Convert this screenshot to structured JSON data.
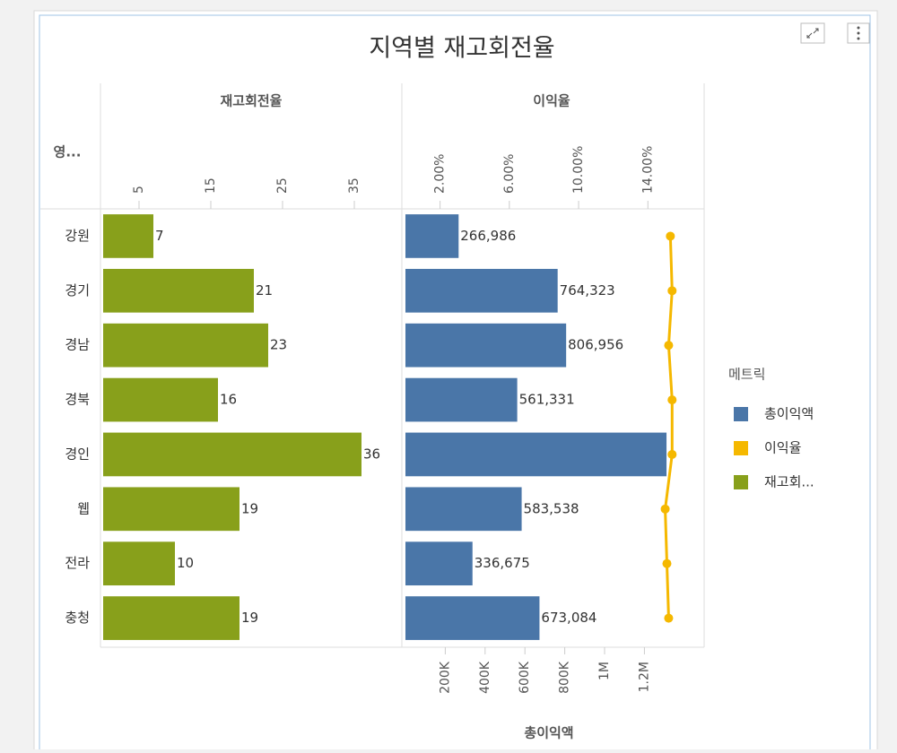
{
  "chart_data": {
    "type": "bar",
    "title": "지역별 재고회전율",
    "row_header": "영...",
    "legend_title": "메트릭",
    "legend_position": "right",
    "categories": [
      "강원",
      "경기",
      "경남",
      "경북",
      "경인",
      "웹",
      "전라",
      "충청"
    ],
    "turnover_axis": {
      "title": "재고회전율",
      "xlim": [
        0,
        41.5
      ],
      "xticks": [
        5,
        15,
        25,
        35
      ]
    },
    "margin_axis": {
      "title": "이익율",
      "xlim": [
        0,
        17.25
      ],
      "xticks": [
        {
          "value": 2,
          "label": "2.00%"
        },
        {
          "value": 6,
          "label": "6.00%"
        },
        {
          "value": 10,
          "label": "10.00%"
        },
        {
          "value": 14,
          "label": "14.00%"
        }
      ]
    },
    "profit_axis": {
      "title": "총이익액",
      "xlim": [
        0,
        1500000
      ],
      "xticks": [
        {
          "value": 200000,
          "label": "200K"
        },
        {
          "value": 400000,
          "label": "400K"
        },
        {
          "value": 600000,
          "label": "600K"
        },
        {
          "value": 800000,
          "label": "800K"
        },
        {
          "value": 1000000,
          "label": "1M"
        },
        {
          "value": 1200000,
          "label": "1.2M"
        }
      ]
    },
    "series": [
      {
        "name": "총이익액",
        "type": "bar",
        "axis": "profit_axis",
        "color": "#4a76a8",
        "values": [
          266986,
          764323,
          806956,
          561331,
          1311000,
          583538,
          336675,
          673084
        ],
        "value_labels": [
          "266,986",
          "764,323",
          "806,956",
          "561,331",
          null,
          "583,538",
          "336,675",
          "673,084"
        ]
      },
      {
        "name": "이익율",
        "type": "line",
        "axis": "margin_axis",
        "color": "#f5b800",
        "values": [
          15.3,
          15.4,
          15.2,
          15.4,
          15.4,
          15.0,
          15.1,
          15.2
        ]
      },
      {
        "name": "재고회...",
        "type": "bar",
        "axis": "turnover_axis",
        "color": "#88a01b",
        "values": [
          7,
          21,
          23,
          16,
          36,
          19,
          10,
          19
        ]
      }
    ]
  }
}
